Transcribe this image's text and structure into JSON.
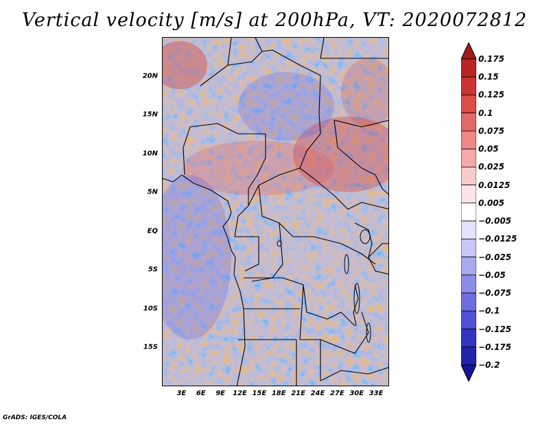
{
  "title": "Vertical velocity [m/s] at 200hPa, VT: 2020072812",
  "credit": "GrADS: IGES/COLA",
  "map": {
    "lat_range": [
      -20,
      25
    ],
    "lon_range": [
      0,
      35
    ],
    "lat_ticks": [
      "20N",
      "15N",
      "10N",
      "5N",
      "EQ",
      "5S",
      "10S",
      "15S"
    ],
    "lat_values": [
      20,
      15,
      10,
      5,
      0,
      -5,
      -10,
      -15
    ],
    "lon_ticks": [
      "3E",
      "6E",
      "9E",
      "12E",
      "15E",
      "18E",
      "21E",
      "24E",
      "27E",
      "30E",
      "33E"
    ],
    "lon_values": [
      3,
      6,
      9,
      12,
      15,
      18,
      21,
      24,
      27,
      30,
      33
    ]
  },
  "colorbar": {
    "labels": [
      "0.175",
      "0.15",
      "0.125",
      "0.1",
      "0.075",
      "0.05",
      "0.025",
      "0.0125",
      "0.005",
      "−0.005",
      "−0.0125",
      "−0.025",
      "−0.05",
      "−0.075",
      "−0.1",
      "−0.125",
      "−0.175",
      "−0.2"
    ],
    "colors": [
      "#a31a1a",
      "#b82424",
      "#cc3333",
      "#dd4b4b",
      "#e46868",
      "#ee8888",
      "#f4a8a8",
      "#f9cccc",
      "#fde6e6",
      "#ffffff",
      "#e2e2fb",
      "#c8c8f6",
      "#aaaaf0",
      "#8c8ce8",
      "#6e6ee0",
      "#5050d4",
      "#3434c0",
      "#2222aa",
      "#14149a"
    ]
  }
}
